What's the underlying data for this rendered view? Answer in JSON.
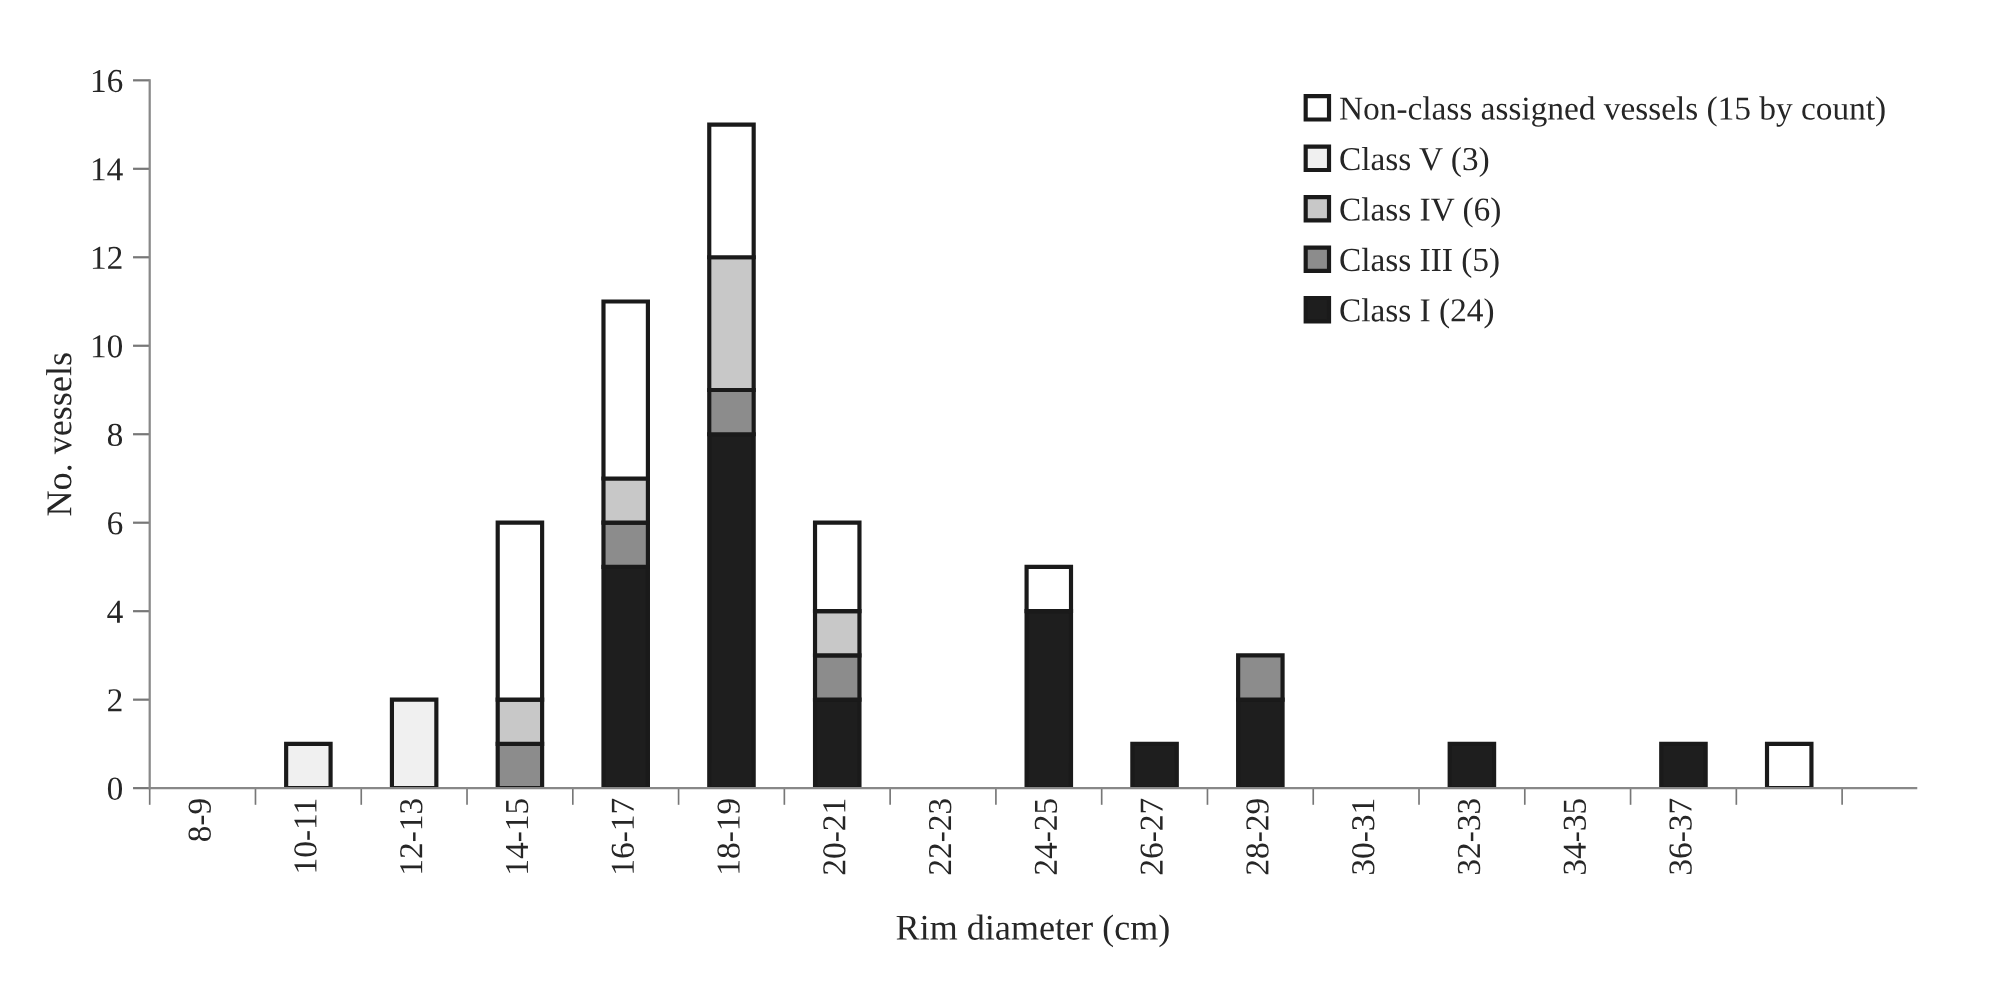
{
  "chart_data": {
    "type": "bar",
    "stacked": true,
    "xlabel": "Rim diameter (cm)",
    "ylabel": "No. vessels",
    "categories": [
      "8-9",
      "10-11",
      "12-13",
      "14-15",
      "16-17",
      "18-19",
      "20-21",
      "22-23",
      "24-25",
      "26-27",
      "28-29",
      "30-31",
      "32-33",
      "34-35",
      "36-37",
      null
    ],
    "series": [
      {
        "name": "Class I (24)",
        "color": "#1e1e1e",
        "values": [
          0,
          0,
          0,
          0,
          5,
          8,
          2,
          0,
          4,
          1,
          2,
          0,
          1,
          0,
          1,
          0
        ]
      },
      {
        "name": "Class III (5)",
        "color": "#8c8c8c",
        "values": [
          0,
          0,
          0,
          1,
          1,
          1,
          1,
          0,
          0,
          0,
          1,
          0,
          0,
          0,
          0,
          0
        ]
      },
      {
        "name": "Class IV (6)",
        "color": "#c8c8c8",
        "values": [
          0,
          0,
          0,
          1,
          1,
          3,
          1,
          0,
          0,
          0,
          0,
          0,
          0,
          0,
          0,
          0
        ]
      },
      {
        "name": "Class V (3)",
        "color": "#f0f0f0",
        "values": [
          0,
          1,
          2,
          0,
          0,
          0,
          0,
          0,
          0,
          0,
          0,
          0,
          0,
          0,
          0,
          0
        ]
      },
      {
        "name": "Non-class assigned vessels (15 by count)",
        "color": "#ffffff",
        "values": [
          0,
          0,
          0,
          4,
          4,
          3,
          2,
          0,
          1,
          0,
          0,
          0,
          0,
          0,
          0,
          1
        ]
      }
    ],
    "ylim": [
      0,
      16
    ],
    "yticks": [
      0,
      2,
      4,
      6,
      8,
      10,
      12,
      14,
      16
    ],
    "grid": false,
    "legend": "top right"
  }
}
